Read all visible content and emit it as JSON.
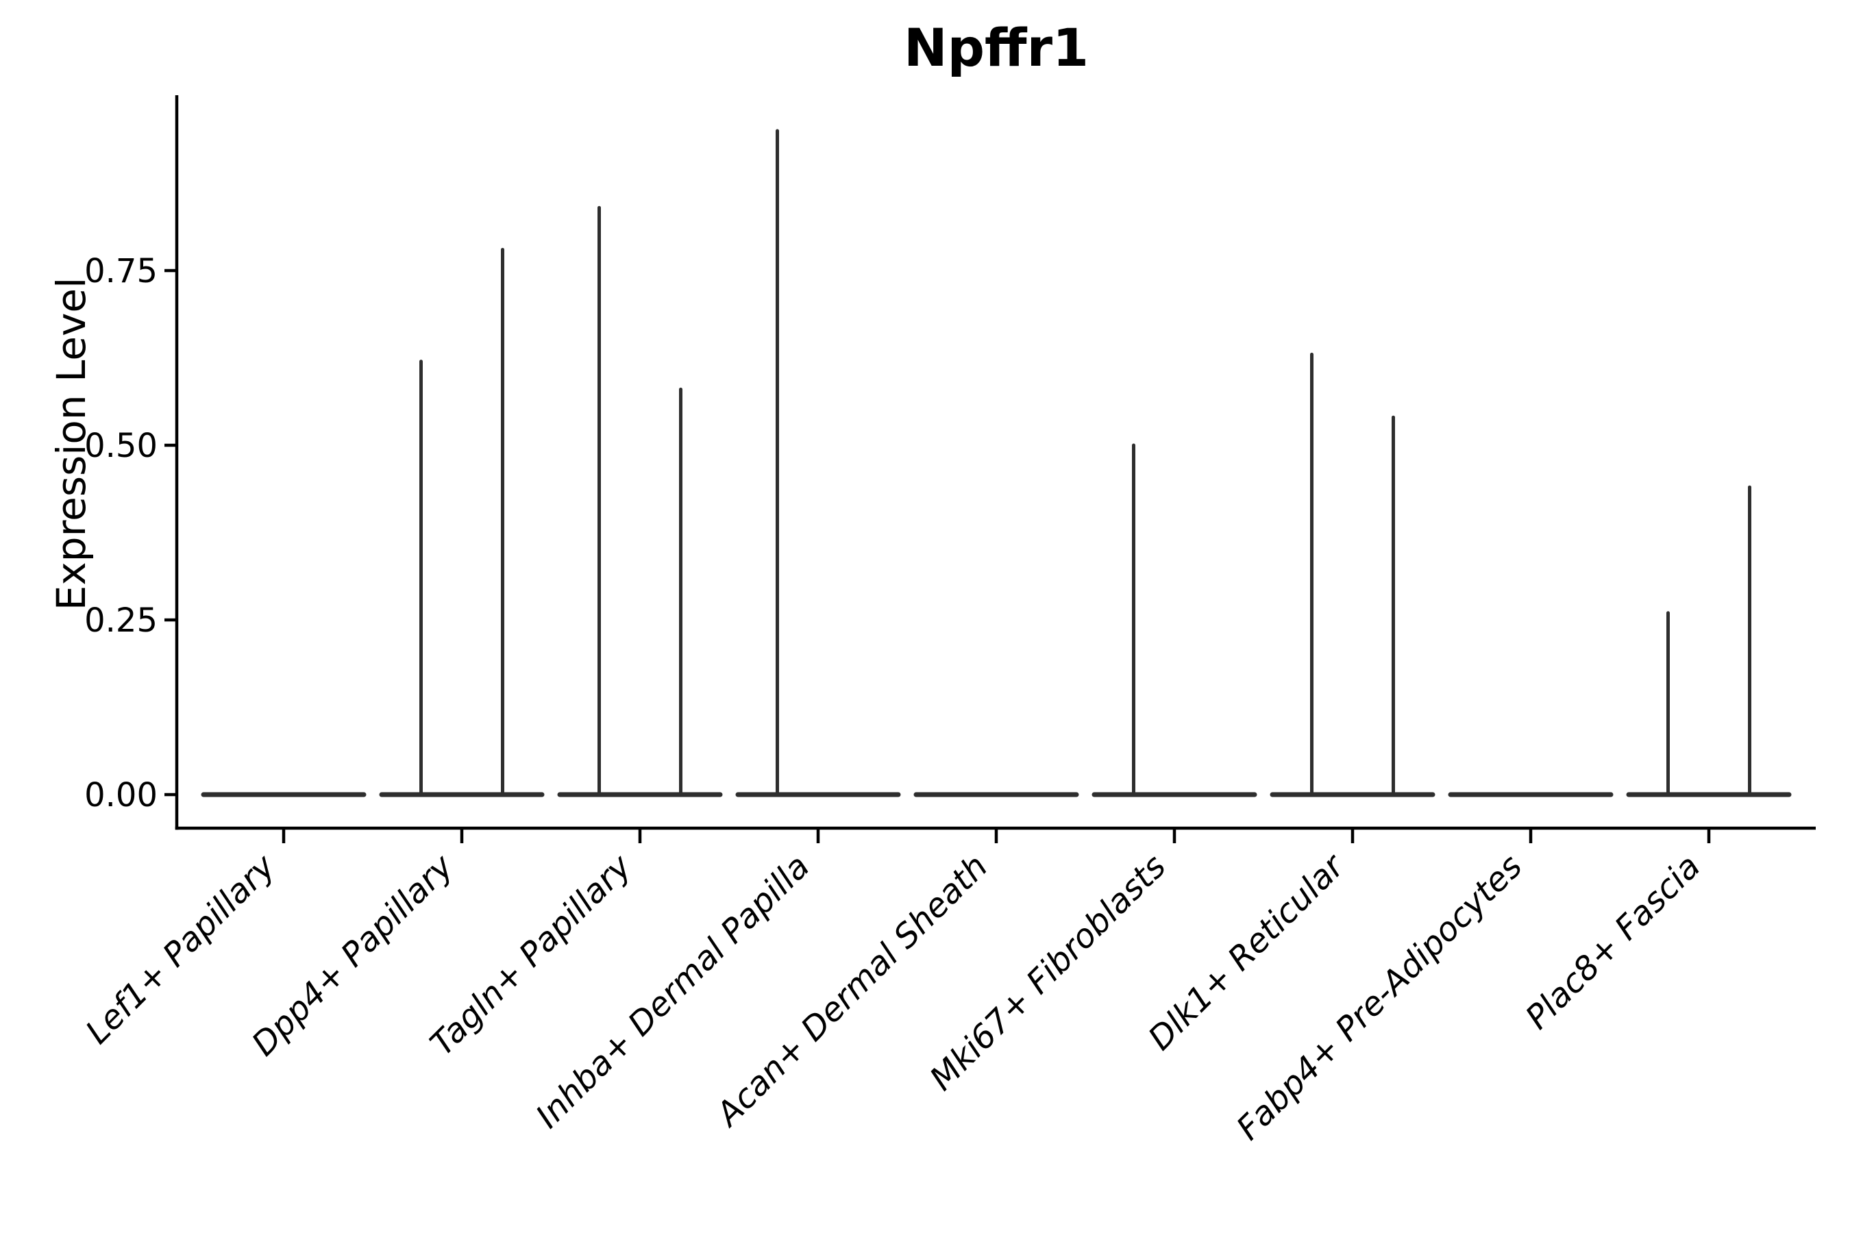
{
  "figure": {
    "title": "Npffr1",
    "y_axis": {
      "label": "Expression Level",
      "tick_labels": [
        "0.00",
        "0.25",
        "0.50",
        "0.75"
      ],
      "tick_values": [
        0,
        0.25,
        0.5,
        0.75
      ]
    },
    "x_axis": {
      "categories": [
        "Lef1+ Papillary",
        "Dpp4+ Papillary",
        "Tagln+ Papillary",
        "Inhba+ Dermal Papilla",
        "Acan+ Dermal Sheath",
        "Mki67+ Fibroblasts",
        "Dlk1+ Reticular",
        "Fabp4+ Pre-Adipocytes",
        "Plac8+ Fascia"
      ]
    }
  },
  "chart_data": {
    "type": "violin",
    "title": "Npffr1",
    "xlabel": "",
    "ylabel": "Expression Level",
    "categories": [
      "Lef1+ Papillary",
      "Dpp4+ Papillary",
      "Tagln+ Papillary",
      "Inhba+ Dermal Papilla",
      "Acan+ Dermal Sheath",
      "Mki67+ Fibroblasts",
      "Dlk1+ Reticular",
      "Fabp4+ Pre-Adipocytes",
      "Plac8+ Fascia"
    ],
    "series": [
      {
        "name": "violin-left",
        "max_expression": [
          0,
          0.62,
          0.84,
          0.95,
          0,
          0.5,
          0.63,
          0,
          0.26
        ]
      },
      {
        "name": "violin-right",
        "max_expression": [
          0,
          0.78,
          0.58,
          0,
          0,
          0,
          0.54,
          0,
          0.44
        ]
      }
    ],
    "ylim": [
      -0.05,
      1.0
    ],
    "yticks": [
      0,
      0.25,
      0.5,
      0.75
    ],
    "ytick_labels": [
      "0.00",
      "0.25",
      "0.50",
      "0.75"
    ],
    "grid": false,
    "legend_position": "none",
    "style_note": "Each category holds two collapsed violins: a flat dark baseline at expression 0 with a thin vertical density spike rising to the listed maximum expression; 0 means the violin is entirely flat (no spike).",
    "colors": {
      "violin_line": "#2e2e2e",
      "axis": "#000000",
      "text": "#000000",
      "background": "#ffffff"
    }
  }
}
